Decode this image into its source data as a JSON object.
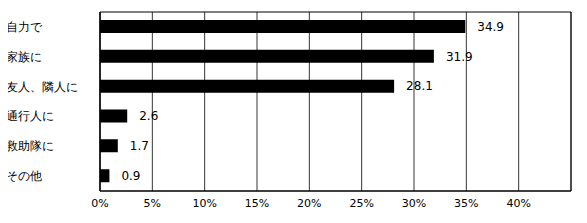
{
  "chart_data": {
    "type": "bar",
    "orientation": "horizontal",
    "categories": [
      "自力で",
      "家族に",
      "友人、隣人に",
      "通行人に",
      "救助隊に",
      "その他"
    ],
    "values": [
      34.9,
      31.9,
      28.1,
      2.6,
      1.7,
      0.9
    ],
    "color": "#000000",
    "xlim": [
      0,
      45
    ],
    "xticks": [
      {
        "value": 0,
        "label": "0%"
      },
      {
        "value": 5,
        "label": "5%"
      },
      {
        "value": 10,
        "label": "10%"
      },
      {
        "value": 15,
        "label": "15%"
      },
      {
        "value": 20,
        "label": "20%"
      },
      {
        "value": 25,
        "label": "25%"
      },
      {
        "value": 30,
        "label": "30%"
      },
      {
        "value": 35,
        "label": "35%"
      },
      {
        "value": 40,
        "label": "40%"
      }
    ],
    "grid": true,
    "data_labels": true
  }
}
